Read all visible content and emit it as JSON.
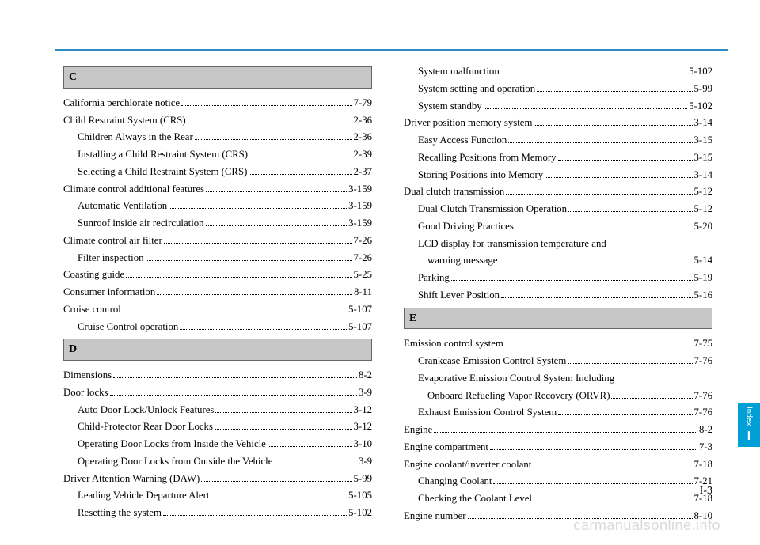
{
  "sections": {
    "c": {
      "letter": "C"
    },
    "d": {
      "letter": "D"
    },
    "e": {
      "letter": "E"
    }
  },
  "left": [
    {
      "t": "header",
      "key": "sections.c.letter"
    },
    {
      "t": "e",
      "label": "California perchlorate notice",
      "pg": "7-79"
    },
    {
      "t": "e",
      "label": "Child Restraint System (CRS)",
      "pg": "2-36"
    },
    {
      "t": "e",
      "indent": 1,
      "label": "Children Always in the Rear",
      "pg": "2-36"
    },
    {
      "t": "e",
      "indent": 1,
      "label": "Installing a Child Restraint System (CRS)",
      "pg": "2-39"
    },
    {
      "t": "e",
      "indent": 1,
      "label": "Selecting a Child Restraint System (CRS)",
      "pg": "2-37"
    },
    {
      "t": "e",
      "label": "Climate control additional features",
      "pg": "3-159"
    },
    {
      "t": "e",
      "indent": 1,
      "label": "Automatic Ventilation",
      "pg": "3-159"
    },
    {
      "t": "e",
      "indent": 1,
      "label": "Sunroof inside air recirculation",
      "pg": "3-159"
    },
    {
      "t": "e",
      "label": "Climate control air filter",
      "pg": "7-26"
    },
    {
      "t": "e",
      "indent": 1,
      "label": "Filter inspection",
      "pg": "7-26"
    },
    {
      "t": "e",
      "label": "Coasting guide",
      "pg": "5-25"
    },
    {
      "t": "e",
      "label": "Consumer information",
      "pg": "8-11"
    },
    {
      "t": "e",
      "label": "Cruise control",
      "pg": "5-107"
    },
    {
      "t": "e",
      "indent": 1,
      "label": "Cruise Control operation",
      "pg": "5-107"
    },
    {
      "t": "header",
      "key": "sections.d.letter"
    },
    {
      "t": "e",
      "label": "Dimensions",
      "pg": "8-2"
    },
    {
      "t": "e",
      "label": "Door locks",
      "pg": "3-9"
    },
    {
      "t": "e",
      "indent": 1,
      "label": "Auto Door Lock/Unlock Features",
      "pg": "3-12"
    },
    {
      "t": "e",
      "indent": 1,
      "label": "Child-Protector Rear Door Locks",
      "pg": "3-12"
    },
    {
      "t": "e",
      "indent": 1,
      "label": "Operating Door Locks from Inside the Vehicle",
      "pg": "3-10"
    },
    {
      "t": "e",
      "indent": 1,
      "label": "Operating Door Locks from Outside the Vehicle",
      "pg": "3-9"
    },
    {
      "t": "e",
      "label": "Driver Attention Warning (DAW)",
      "pg": "5-99"
    },
    {
      "t": "e",
      "indent": 1,
      "label": "Leading Vehicle Departure Alert",
      "pg": "5-105"
    },
    {
      "t": "e",
      "indent": 1,
      "label": "Resetting the system",
      "pg": "5-102"
    }
  ],
  "right": [
    {
      "t": "e",
      "indent": 1,
      "label": "System malfunction",
      "pg": "5-102"
    },
    {
      "t": "e",
      "indent": 1,
      "label": "System setting and operation",
      "pg": "5-99"
    },
    {
      "t": "e",
      "indent": 1,
      "label": "System standby",
      "pg": "5-102"
    },
    {
      "t": "e",
      "label": "Driver position memory system",
      "pg": "3-14"
    },
    {
      "t": "e",
      "indent": 1,
      "label": "Easy Access Function",
      "pg": "3-15"
    },
    {
      "t": "e",
      "indent": 1,
      "label": "Recalling Positions from Memory",
      "pg": "3-15"
    },
    {
      "t": "e",
      "indent": 1,
      "label": "Storing Positions into Memory",
      "pg": "3-14"
    },
    {
      "t": "e",
      "label": "Dual clutch transmission",
      "pg": "5-12"
    },
    {
      "t": "e",
      "indent": 1,
      "label": "Dual Clutch Transmission Operation",
      "pg": "5-12"
    },
    {
      "t": "e",
      "indent": 1,
      "label": "Good Driving Practices",
      "pg": "5-20"
    },
    {
      "t": "txt",
      "indent": 1,
      "label": "LCD display for transmission temperature and"
    },
    {
      "t": "e",
      "indent": 2,
      "label": "warning message",
      "pg": "5-14"
    },
    {
      "t": "e",
      "indent": 1,
      "label": "Parking",
      "pg": "5-19"
    },
    {
      "t": "e",
      "indent": 1,
      "label": "Shift Lever Position",
      "pg": "5-16"
    },
    {
      "t": "header",
      "key": "sections.e.letter"
    },
    {
      "t": "e",
      "label": "Emission control system",
      "pg": "7-75"
    },
    {
      "t": "e",
      "indent": 1,
      "label": "Crankcase Emission Control System",
      "pg": "7-76"
    },
    {
      "t": "txt",
      "indent": 1,
      "label": "Evaporative Emission Control System Including"
    },
    {
      "t": "e",
      "indent": 2,
      "label": "Onboard Refueling Vapor Recovery (ORVR)",
      "pg": "7-76"
    },
    {
      "t": "e",
      "indent": 1,
      "label": "Exhaust Emission Control System",
      "pg": "7-76"
    },
    {
      "t": "e",
      "label": "Engine",
      "pg": "8-2"
    },
    {
      "t": "e",
      "label": "Engine compartment",
      "pg": "7-3"
    },
    {
      "t": "e",
      "label": "Engine coolant/inverter coolant",
      "pg": "7-18"
    },
    {
      "t": "e",
      "indent": 1,
      "label": "Changing Coolant",
      "pg": "7-21"
    },
    {
      "t": "e",
      "indent": 1,
      "label": "Checking the Coolant Level",
      "pg": "7-18"
    },
    {
      "t": "e",
      "label": "Engine number",
      "pg": "8-10"
    }
  ],
  "sideTab": {
    "label": "Index",
    "letter": "I"
  },
  "pageNumber": "I-3",
  "watermark": "carmanualsonline.info"
}
